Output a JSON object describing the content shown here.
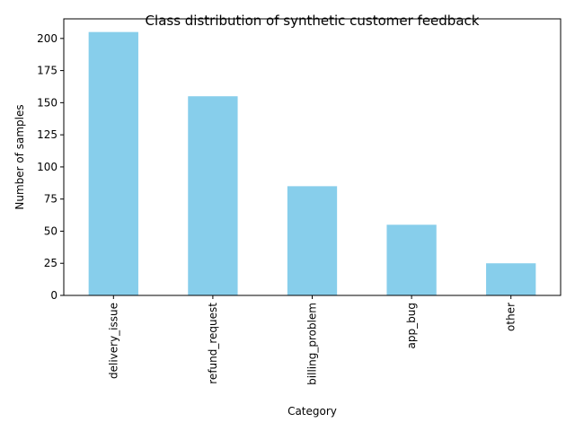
{
  "chart_data": {
    "type": "bar",
    "title": "Class distribution of synthetic customer feedback",
    "xlabel": "Category",
    "ylabel": "Number of samples",
    "categories": [
      "delivery_issue",
      "refund_request",
      "billing_problem",
      "app_bug",
      "other"
    ],
    "values": [
      205,
      155,
      85,
      55,
      25
    ],
    "ylim": [
      0,
      215.25
    ],
    "yticks": [
      0,
      25,
      50,
      75,
      100,
      125,
      150,
      175,
      200
    ],
    "bar_color": "#87ceeb",
    "grid": false,
    "legend": "none"
  }
}
